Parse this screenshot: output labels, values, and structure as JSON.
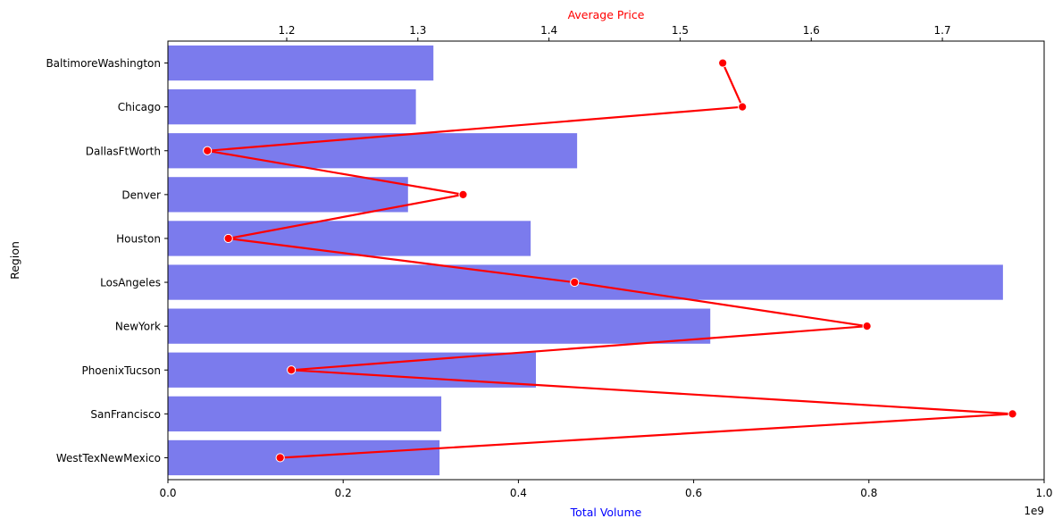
{
  "chart_data": {
    "type": "bar",
    "orientation": "horizontal",
    "categories": [
      "BaltimoreWashington",
      "Chicago",
      "DallasFtWorth",
      "Denver",
      "Houston",
      "LosAngeles",
      "NewYork",
      "PhoenixTucson",
      "SanFrancisco",
      "WestTexNewMexico"
    ],
    "ylabel": "Region",
    "bar_series": {
      "values": [
        303000000,
        283000000,
        467000000,
        274000000,
        414000000,
        953000000,
        619000000,
        420000000,
        312000000,
        310000000
      ],
      "color": "#7b7bed"
    },
    "bottom_axis": {
      "label": "Total Volume",
      "label_color": "#0000ff",
      "range": [
        0,
        1000000000
      ],
      "ticks": [
        0,
        200000000,
        400000000,
        600000000,
        800000000,
        1000000000
      ],
      "tick_labels": [
        "0.0",
        "0.2",
        "0.4",
        "0.6",
        "0.8",
        "1.0"
      ],
      "offset_text": "1e9"
    },
    "line_series": {
      "values": [
        1.5325,
        1.5475,
        1.1395,
        1.3345,
        1.1555,
        1.4195,
        1.6425,
        1.2035,
        1.7535,
        1.195
      ],
      "color": "#ff0000"
    },
    "top_axis": {
      "label": "Average Price",
      "label_color": "#ff0000",
      "range": [
        1.1094,
        1.7776
      ],
      "ticks": [
        1.2,
        1.3,
        1.4,
        1.5,
        1.6,
        1.7
      ],
      "tick_labels": [
        "1.2",
        "1.3",
        "1.4",
        "1.5",
        "1.6",
        "1.7"
      ]
    },
    "grid": false,
    "legend": "none"
  }
}
